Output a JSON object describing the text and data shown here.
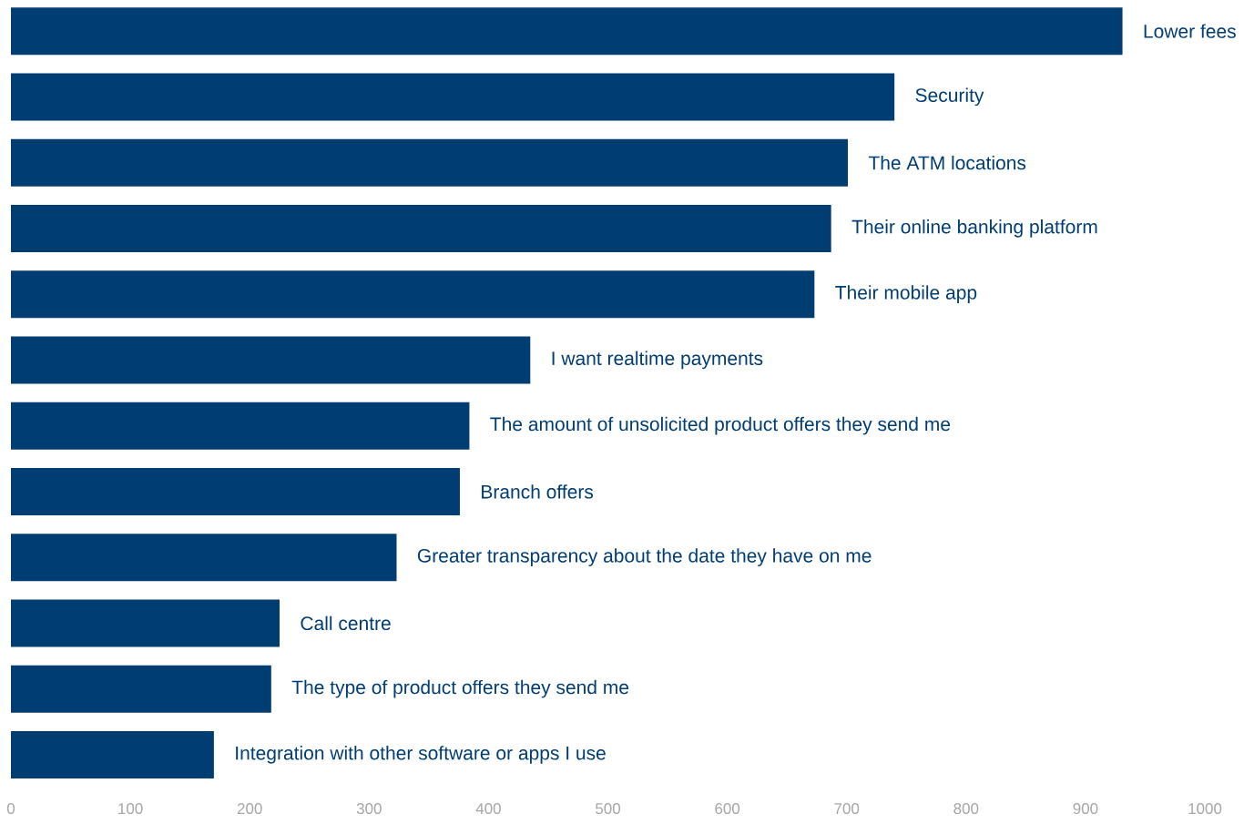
{
  "chart_data": {
    "type": "bar",
    "orientation": "horizontal",
    "categories": [
      "Lower fees",
      "Security",
      "The ATM locations",
      "Their online banking platform",
      "Their mobile app",
      "I want realtime payments",
      "The amount of unsolicited product offers they send me",
      "Branch offers",
      "Greater transparency about the date they have on me",
      "Call centre",
      "The type of product offers they send me",
      "Integration with other software or apps I use"
    ],
    "values": [
      931,
      740,
      701,
      687,
      673,
      435,
      384,
      376,
      323,
      225,
      218,
      170
    ],
    "color": "#003d73",
    "xlim": [
      0,
      1000
    ],
    "xticks": [
      0,
      100,
      200,
      300,
      400,
      500,
      600,
      700,
      800,
      900,
      1000
    ]
  }
}
